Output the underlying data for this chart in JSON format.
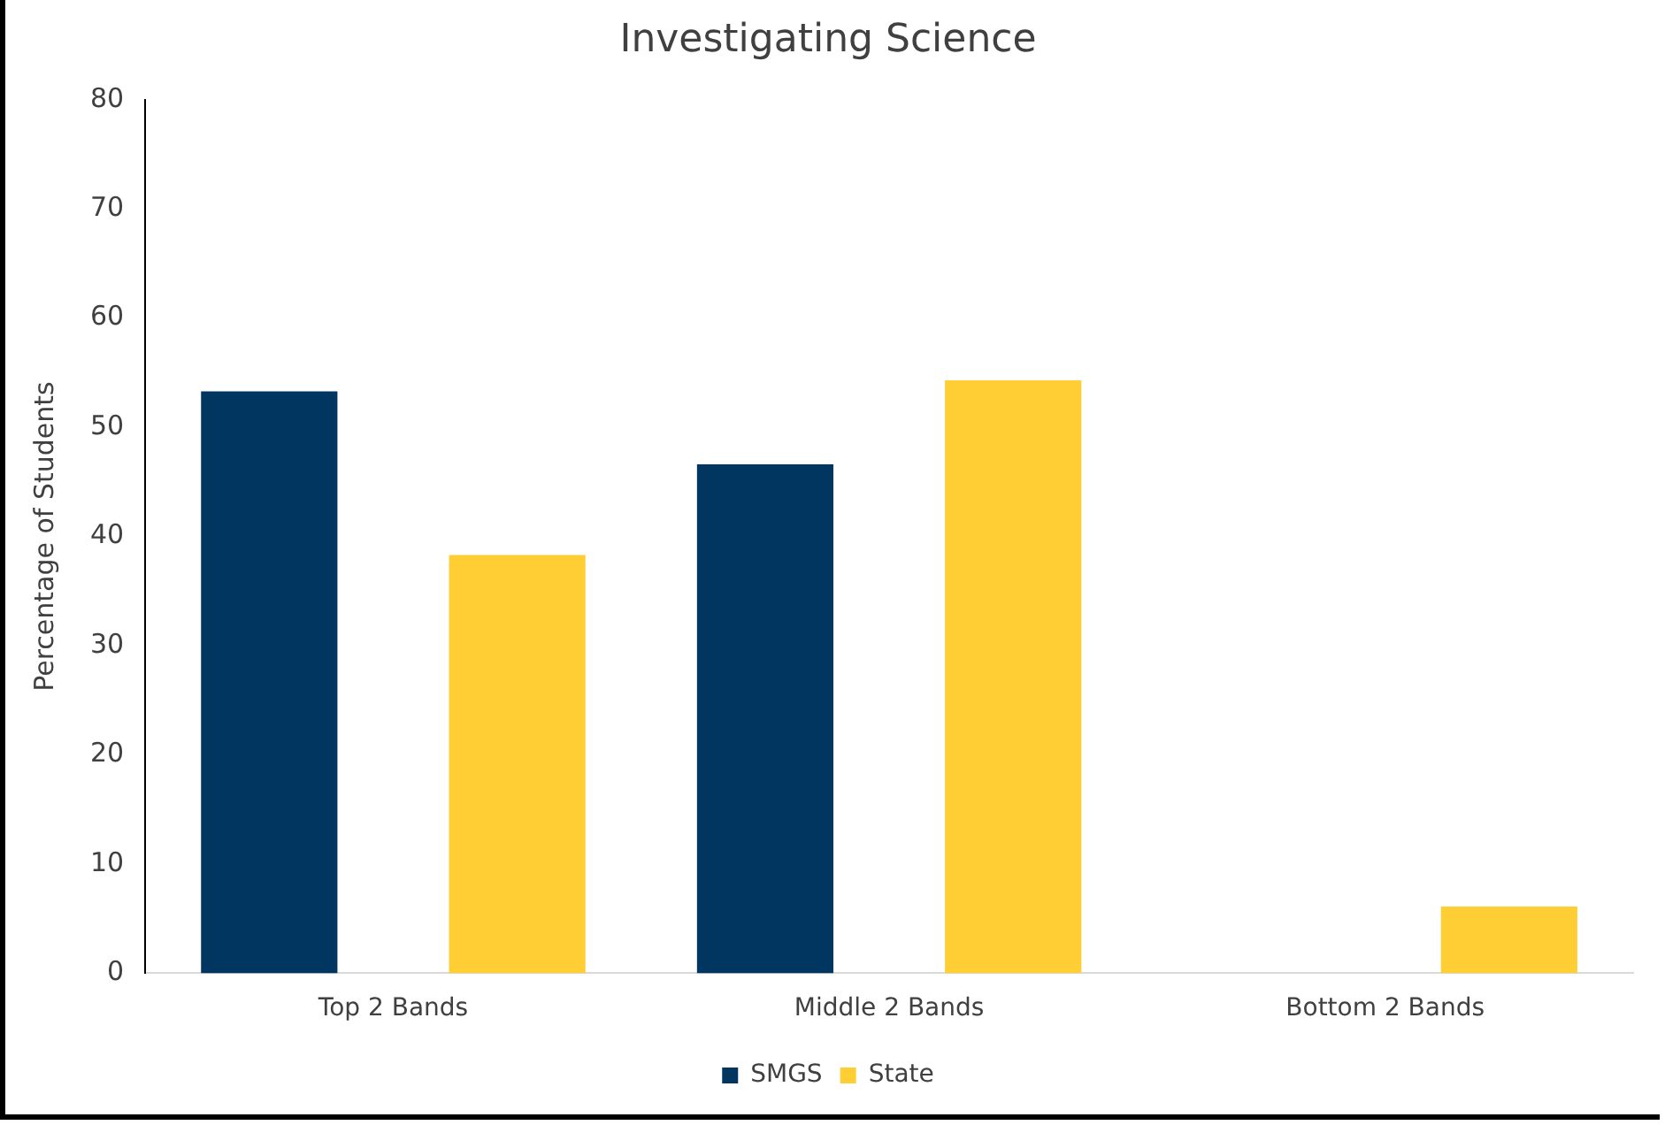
{
  "chart_data": {
    "type": "bar",
    "title": "Investigating Science",
    "ylabel": "Percentage of Students",
    "categories": [
      "Top 2 Bands",
      "Middle 2 Bands",
      "Bottom 2 Bands"
    ],
    "series": [
      {
        "name": "SMGS",
        "color": "#003660",
        "values": [
          53.3,
          46.6,
          null
        ]
      },
      {
        "name": "State",
        "color": "#ffcd34",
        "values": [
          38.3,
          54.3,
          6.1
        ]
      }
    ],
    "ylim": [
      0,
      80
    ],
    "yticks": [
      0,
      10,
      20,
      30,
      40,
      50,
      60,
      70,
      80
    ],
    "grid": false,
    "legend": "bottom"
  }
}
